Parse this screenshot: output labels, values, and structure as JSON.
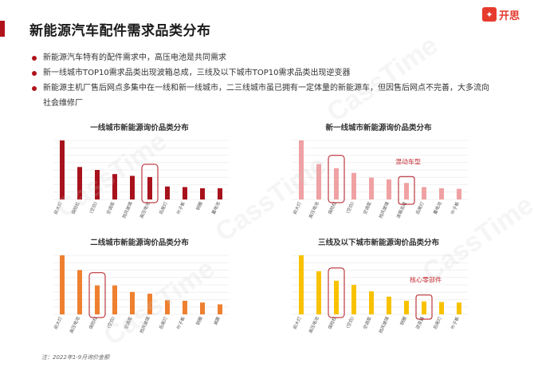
{
  "page": {
    "title": "新能源汽车配件需求品类分布",
    "logo_text": "开思",
    "bullets": [
      "新能源汽车特有的配件需求中，高压电池是共同需求",
      "新一线城市TOP10需求品类出现波箱总成，三线及以下城市TOP10需求品类出现逆变器",
      "新能源主机厂售后网点多集中在一线和新一线城市，二三线城市虽已拥有一定体量的新能源车，但因售后网点不完善，大多流向社会维修厂"
    ],
    "note": "注：2022年1-9月询价金额",
    "watermark": "CassTime"
  },
  "colors": {
    "accent": "#b0121b",
    "tier1": "#a8121c",
    "newtier1": "#f0a1a3",
    "tier2": "#ee8030",
    "tier3": "#f8c200",
    "highlight_box": "#b0121b",
    "annotation": "#c0282e"
  },
  "chart_data": [
    {
      "type": "bar",
      "title": "一线城市新能源询价品类分布",
      "categories": [
        "前大灯",
        "保险杠",
        "(空白)",
        "空调泵",
        "挡风玻璃",
        "高压电池",
        "后尾灯",
        "叶子板",
        "钢圈",
        "蓄电池"
      ],
      "values": [
        100,
        55,
        50,
        43,
        40,
        38,
        22,
        21,
        19,
        19
      ],
      "highlight_index": 5,
      "annotation": "",
      "annotation_index": null,
      "grid": true
    },
    {
      "type": "bar",
      "title": "新一线城市新能源询价品类分布",
      "categories": [
        "前大灯",
        "高压电池",
        "保险杠",
        "(空白)",
        "空调泵",
        "挡风玻璃",
        "波箱总成",
        "后尾灯",
        "蓄电池",
        "叶子板"
      ],
      "values": [
        100,
        60,
        53,
        45,
        37,
        34,
        28,
        21,
        19,
        18
      ],
      "highlight_index": 2,
      "annotation": "混动车型",
      "annotation_index": 6,
      "grid": true
    },
    {
      "type": "bar",
      "title": "二线城市新能源询价品类分布",
      "categories": [
        "前大灯",
        "高压电池",
        "保险杠",
        "(空白)",
        "空调泵",
        "挡风玻璃",
        "后尾灯",
        "叶子板",
        "钢圈",
        "减震"
      ],
      "values": [
        100,
        75,
        49,
        49,
        38,
        35,
        24,
        23,
        20,
        17
      ],
      "highlight_index": 2,
      "annotation": "",
      "annotation_index": null,
      "grid": true
    },
    {
      "type": "bar",
      "title": "三线及以下城市新能源询价品类分布",
      "categories": [
        "前大灯",
        "高压电池",
        "保险杠",
        "(空白)",
        "空调泵",
        "挡风玻璃",
        "钢圈",
        "逆变器",
        "后尾灯",
        "叶子板"
      ],
      "values": [
        100,
        73,
        57,
        50,
        39,
        30,
        23,
        22,
        21,
        20
      ],
      "highlight_index": 2,
      "annotation": "核心零部件",
      "annotation_index": 7,
      "grid": true
    }
  ]
}
